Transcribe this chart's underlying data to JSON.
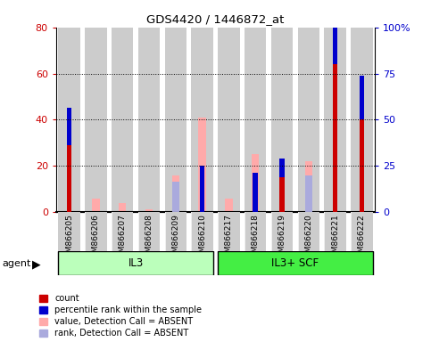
{
  "title": "GDS4420 / 1446872_at",
  "samples": [
    "GSM866205",
    "GSM866206",
    "GSM866207",
    "GSM866208",
    "GSM866209",
    "GSM866210",
    "GSM866217",
    "GSM866218",
    "GSM866219",
    "GSM866220",
    "GSM866221",
    "GSM866222"
  ],
  "count": [
    29,
    0,
    0,
    0,
    0,
    0,
    0,
    0,
    15,
    0,
    64,
    40
  ],
  "percentile_rank": [
    16,
    0,
    0,
    0,
    0,
    20,
    0,
    17,
    8,
    0,
    27,
    19
  ],
  "value_absent": [
    0,
    6,
    4,
    1,
    16,
    41,
    6,
    25,
    0,
    22,
    0,
    0
  ],
  "rank_absent": [
    0,
    0,
    0,
    0,
    13,
    0,
    0,
    0,
    0,
    16,
    0,
    0
  ],
  "group1_label": "IL3",
  "group2_label": "IL3+ SCF",
  "group1_indices": [
    0,
    1,
    2,
    3,
    4,
    5
  ],
  "group2_indices": [
    6,
    7,
    8,
    9,
    10,
    11
  ],
  "ylim_left": [
    0,
    80
  ],
  "ylim_right": [
    0,
    100
  ],
  "yticks_left": [
    0,
    20,
    40,
    60,
    80
  ],
  "yticks_right": [
    0,
    25,
    50,
    75,
    100
  ],
  "ytick_labels_left": [
    "0",
    "20",
    "40",
    "60",
    "80"
  ],
  "ytick_labels_right": [
    "0",
    "25",
    "50",
    "75",
    "100%"
  ],
  "count_color": "#cc0000",
  "rank_color": "#0000cc",
  "value_absent_color": "#ffaaaa",
  "rank_absent_color": "#aaaadd",
  "group1_color": "#bbffbb",
  "group2_color": "#44ee44",
  "bar_bg_color": "#cccccc",
  "plot_bg_color": "#ffffff",
  "agent_label": "agent",
  "legend_items": [
    "count",
    "percentile rank within the sample",
    "value, Detection Call = ABSENT",
    "rank, Detection Call = ABSENT"
  ]
}
